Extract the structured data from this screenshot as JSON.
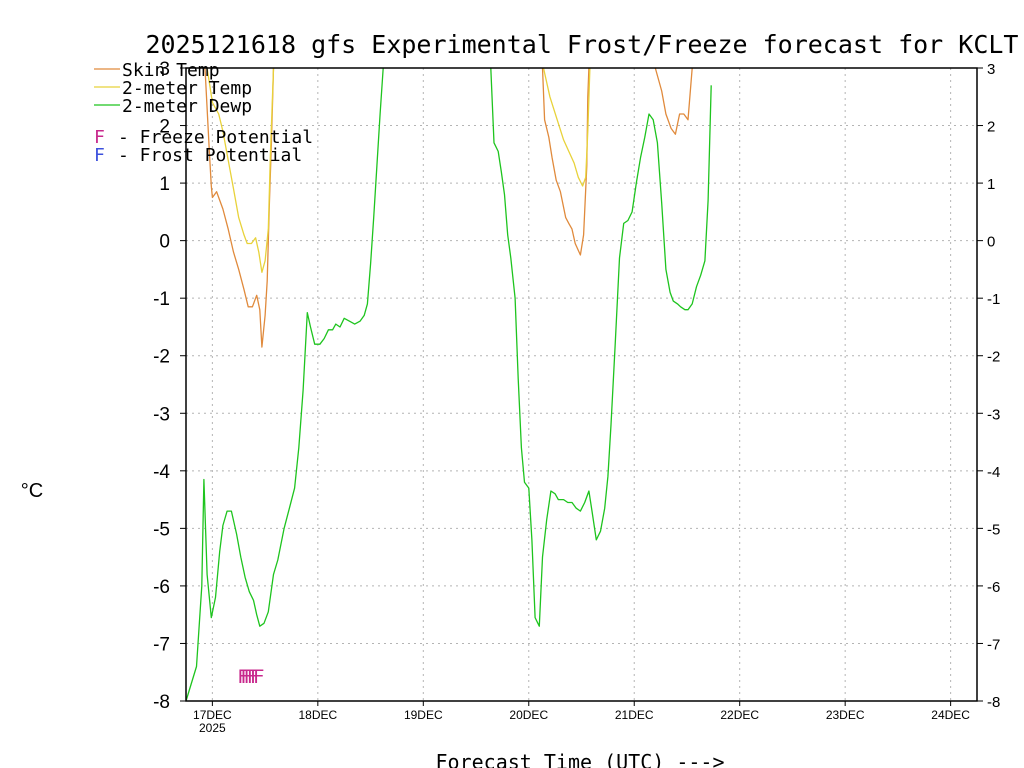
{
  "chart_data": {
    "type": "line",
    "title": "2025121618 gfs Experimental Frost/Freeze forecast for KCLT",
    "xlabel": "Forecast Time (UTC) --->",
    "ylabel": "°C",
    "ylim": [
      -8,
      3
    ],
    "xlim": [
      16.75,
      24.25
    ],
    "yticks": [
      -8,
      -7,
      -6,
      -5,
      -4,
      -3,
      -2,
      -1,
      0,
      1,
      2,
      3
    ],
    "xticks": [
      {
        "x": 17,
        "label": "17DEC",
        "sub": "2025"
      },
      {
        "x": 18,
        "label": "18DEC",
        "sub": ""
      },
      {
        "x": 19,
        "label": "19DEC",
        "sub": ""
      },
      {
        "x": 20,
        "label": "20DEC",
        "sub": ""
      },
      {
        "x": 21,
        "label": "21DEC",
        "sub": ""
      },
      {
        "x": 22,
        "label": "22DEC",
        "sub": ""
      },
      {
        "x": 23,
        "label": "23DEC",
        "sub": ""
      },
      {
        "x": 24,
        "label": "24DEC",
        "sub": ""
      }
    ],
    "grid": true,
    "series": [
      {
        "name": "Skin Temp",
        "color": "#e08a3c",
        "segments": [
          [
            [
              16.93,
              3.0
            ],
            [
              16.97,
              1.6
            ],
            [
              16.99,
              0.95
            ],
            [
              17.0,
              0.75
            ],
            [
              17.02,
              0.8
            ],
            [
              17.04,
              0.85
            ],
            [
              17.06,
              0.75
            ],
            [
              17.1,
              0.55
            ],
            [
              17.15,
              0.2
            ],
            [
              17.2,
              -0.2
            ],
            [
              17.25,
              -0.5
            ],
            [
              17.3,
              -0.85
            ],
            [
              17.34,
              -1.15
            ],
            [
              17.38,
              -1.15
            ],
            [
              17.42,
              -0.95
            ],
            [
              17.45,
              -1.2
            ],
            [
              17.47,
              -1.85
            ],
            [
              17.5,
              -1.3
            ],
            [
              17.52,
              -0.7
            ],
            [
              17.54,
              0.6
            ],
            [
              17.56,
              1.7
            ],
            [
              17.58,
              3.0
            ]
          ],
          [
            [
              20.13,
              3.0
            ],
            [
              20.15,
              2.1
            ],
            [
              20.19,
              1.8
            ],
            [
              20.22,
              1.45
            ],
            [
              20.26,
              1.05
            ],
            [
              20.3,
              0.85
            ],
            [
              20.35,
              0.4
            ],
            [
              20.38,
              0.3
            ],
            [
              20.41,
              0.2
            ],
            [
              20.44,
              -0.05
            ],
            [
              20.49,
              -0.25
            ],
            [
              20.52,
              0.1
            ],
            [
              20.55,
              1.3
            ],
            [
              20.56,
              2.5
            ],
            [
              20.57,
              3.0
            ]
          ],
          [
            [
              21.2,
              3.0
            ],
            [
              21.26,
              2.6
            ],
            [
              21.3,
              2.2
            ],
            [
              21.35,
              1.95
            ],
            [
              21.39,
              1.85
            ],
            [
              21.43,
              2.2
            ],
            [
              21.47,
              2.2
            ],
            [
              21.51,
              2.1
            ],
            [
              21.55,
              3.0
            ]
          ]
        ]
      },
      {
        "name": "2-meter Temp",
        "color": "#e8d23a",
        "segments": [
          [
            [
              16.95,
              3.0
            ],
            [
              17.0,
              2.4
            ],
            [
              17.06,
              2.2
            ],
            [
              17.1,
              1.9
            ],
            [
              17.15,
              1.4
            ],
            [
              17.2,
              0.9
            ],
            [
              17.25,
              0.4
            ],
            [
              17.3,
              0.1
            ],
            [
              17.33,
              -0.05
            ],
            [
              17.37,
              -0.05
            ],
            [
              17.41,
              0.05
            ],
            [
              17.44,
              -0.2
            ],
            [
              17.47,
              -0.55
            ],
            [
              17.5,
              -0.35
            ],
            [
              17.53,
              0.2
            ],
            [
              17.55,
              1.5
            ],
            [
              17.58,
              3.0
            ]
          ],
          [
            [
              20.14,
              3.0
            ],
            [
              20.2,
              2.5
            ],
            [
              20.27,
              2.1
            ],
            [
              20.33,
              1.75
            ],
            [
              20.38,
              1.55
            ],
            [
              20.43,
              1.35
            ],
            [
              20.47,
              1.1
            ],
            [
              20.51,
              0.95
            ],
            [
              20.54,
              1.1
            ],
            [
              20.56,
              1.9
            ],
            [
              20.58,
              3.0
            ]
          ]
        ]
      },
      {
        "name": "2-meter Dewp",
        "color": "#1ec41e",
        "segments": [
          [
            [
              16.75,
              -8.0
            ],
            [
              16.85,
              -7.4
            ],
            [
              16.9,
              -6.0
            ],
            [
              16.92,
              -4.15
            ],
            [
              16.95,
              -5.8
            ],
            [
              16.99,
              -6.55
            ],
            [
              17.03,
              -6.2
            ],
            [
              17.07,
              -5.4
            ],
            [
              17.1,
              -4.95
            ],
            [
              17.14,
              -4.7
            ],
            [
              17.18,
              -4.7
            ],
            [
              17.23,
              -5.1
            ],
            [
              17.27,
              -5.5
            ],
            [
              17.31,
              -5.85
            ],
            [
              17.35,
              -6.1
            ],
            [
              17.39,
              -6.25
            ],
            [
              17.42,
              -6.5
            ],
            [
              17.45,
              -6.7
            ],
            [
              17.49,
              -6.65
            ],
            [
              17.53,
              -6.45
            ],
            [
              17.58,
              -5.8
            ],
            [
              17.62,
              -5.55
            ],
            [
              17.68,
              -5.0
            ],
            [
              17.73,
              -4.65
            ],
            [
              17.78,
              -4.3
            ],
            [
              17.82,
              -3.6
            ],
            [
              17.86,
              -2.6
            ],
            [
              17.9,
              -1.25
            ],
            [
              17.93,
              -1.5
            ],
            [
              17.97,
              -1.8
            ],
            [
              18.02,
              -1.8
            ],
            [
              18.06,
              -1.7
            ],
            [
              18.1,
              -1.55
            ],
            [
              18.14,
              -1.55
            ],
            [
              18.17,
              -1.45
            ],
            [
              18.21,
              -1.5
            ],
            [
              18.25,
              -1.35
            ],
            [
              18.3,
              -1.4
            ],
            [
              18.35,
              -1.45
            ],
            [
              18.4,
              -1.4
            ],
            [
              18.44,
              -1.3
            ],
            [
              18.47,
              -1.1
            ],
            [
              18.5,
              -0.4
            ],
            [
              18.53,
              0.4
            ],
            [
              18.56,
              1.3
            ],
            [
              18.59,
              2.2
            ],
            [
              18.62,
              3.0
            ]
          ],
          [
            [
              19.64,
              3.0
            ],
            [
              19.67,
              1.7
            ],
            [
              19.71,
              1.55
            ],
            [
              19.74,
              1.2
            ],
            [
              19.77,
              0.8
            ],
            [
              19.8,
              0.1
            ],
            [
              19.83,
              -0.3
            ],
            [
              19.87,
              -1.0
            ],
            [
              19.9,
              -2.4
            ],
            [
              19.93,
              -3.6
            ],
            [
              19.96,
              -4.2
            ],
            [
              20.0,
              -4.3
            ],
            [
              20.03,
              -5.2
            ],
            [
              20.06,
              -6.55
            ],
            [
              20.1,
              -6.7
            ],
            [
              20.13,
              -5.5
            ],
            [
              20.17,
              -4.85
            ],
            [
              20.21,
              -4.35
            ],
            [
              20.25,
              -4.4
            ],
            [
              20.28,
              -4.5
            ],
            [
              20.33,
              -4.5
            ],
            [
              20.37,
              -4.55
            ],
            [
              20.41,
              -4.55
            ],
            [
              20.45,
              -4.65
            ],
            [
              20.49,
              -4.7
            ],
            [
              20.53,
              -4.55
            ],
            [
              20.57,
              -4.35
            ],
            [
              20.6,
              -4.7
            ],
            [
              20.64,
              -5.2
            ],
            [
              20.68,
              -5.05
            ],
            [
              20.72,
              -4.65
            ],
            [
              20.75,
              -4.1
            ],
            [
              20.78,
              -3.2
            ],
            [
              20.82,
              -1.8
            ],
            [
              20.86,
              -0.3
            ],
            [
              20.9,
              0.3
            ],
            [
              20.94,
              0.35
            ],
            [
              20.98,
              0.5
            ],
            [
              21.02,
              1.0
            ],
            [
              21.06,
              1.45
            ],
            [
              21.1,
              1.8
            ],
            [
              21.14,
              2.2
            ],
            [
              21.18,
              2.1
            ],
            [
              21.22,
              1.7
            ],
            [
              21.26,
              0.65
            ],
            [
              21.3,
              -0.5
            ],
            [
              21.34,
              -0.9
            ],
            [
              21.37,
              -1.05
            ],
            [
              21.41,
              -1.1
            ],
            [
              21.44,
              -1.15
            ],
            [
              21.48,
              -1.2
            ],
            [
              21.51,
              -1.2
            ],
            [
              21.55,
              -1.1
            ],
            [
              21.59,
              -0.8
            ],
            [
              21.63,
              -0.6
            ],
            [
              21.67,
              -0.35
            ],
            [
              21.7,
              0.7
            ],
            [
              21.73,
              2.7
            ]
          ]
        ]
      }
    ],
    "legend": [
      {
        "label": "Skin Temp",
        "color": "#e08a3c"
      },
      {
        "label": "2-meter Temp",
        "color": "#e8d23a"
      },
      {
        "label": "2-meter Dewp",
        "color": "#1ec41e"
      }
    ],
    "legend2": [
      {
        "mark": "F",
        "text": "- Freeze Potential",
        "color": "#c8288c"
      },
      {
        "mark": "F",
        "text": "- Frost Potential",
        "color": "#3c50dc"
      }
    ],
    "freeze_marks": {
      "color": "#c8288c",
      "x": [
        17.29,
        17.32,
        17.35,
        17.38,
        17.41,
        17.44
      ],
      "y": -7.55
    }
  }
}
